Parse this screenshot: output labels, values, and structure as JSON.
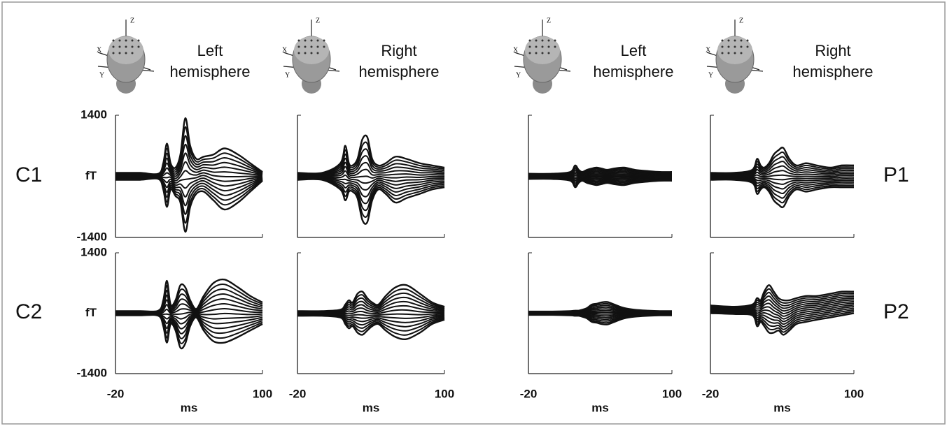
{
  "figure": {
    "columns": [
      {
        "title": "Left hemisphere",
        "head_axes": [
          "Z",
          "X",
          "Y"
        ]
      },
      {
        "title": "Right hemisphere",
        "head_axes": [
          "Z",
          "X",
          "Y"
        ]
      },
      {
        "title": "Left hemisphere",
        "head_axes": [
          "Z",
          "X",
          "Y"
        ]
      },
      {
        "title": "Right hemisphere",
        "head_axes": [
          "Z",
          "X",
          "Y"
        ]
      }
    ],
    "row_labels": [
      "C1",
      "C2",
      "P1",
      "P2"
    ]
  },
  "chart_data": [
    {
      "type": "line",
      "ylabel": "fT",
      "xlim": [
        -20,
        100
      ],
      "xticks": [
        -20,
        100
      ],
      "ylim": [
        -1400,
        1400
      ],
      "yticks": [
        -1400,
        1400
      ],
      "x": [
        -20,
        0,
        15,
        19,
        22,
        25,
        29,
        33,
        37,
        41,
        46,
        52,
        60,
        69,
        80,
        90,
        100
      ],
      "upper": [
        80,
        80,
        60,
        300,
        750,
        300,
        200,
        500,
        1330,
        700,
        400,
        450,
        500,
        640,
        500,
        300,
        100
      ],
      "lower": [
        -80,
        -80,
        -60,
        -300,
        -700,
        -300,
        -450,
        -600,
        -1270,
        -700,
        -400,
        -350,
        -550,
        -760,
        -600,
        -350,
        -100
      ]
    },
    {
      "type": "line",
      "xlim": [
        -20,
        100
      ],
      "xticks": [
        -20,
        100
      ],
      "ylim": [
        -1400,
        1400
      ],
      "yticks": [
        -1400,
        1400
      ],
      "x": [
        -20,
        0,
        15,
        19,
        22,
        25,
        29,
        33,
        37,
        41,
        46,
        52,
        60,
        69,
        80,
        90,
        100
      ],
      "upper": [
        80,
        80,
        300,
        700,
        300,
        250,
        400,
        850,
        900,
        400,
        250,
        300,
        450,
        400,
        300,
        250,
        200
      ],
      "lower": [
        -80,
        -80,
        -300,
        -550,
        -350,
        -350,
        -500,
        -1000,
        -1050,
        -550,
        -300,
        -400,
        -600,
        -500,
        -400,
        -300,
        -250
      ]
    },
    {
      "type": "line",
      "xlim": [
        -20,
        100
      ],
      "xticks": [
        -20,
        100
      ],
      "ylim": [
        -1400,
        1400
      ],
      "yticks": [
        -1400,
        1400
      ],
      "x": [
        -20,
        0,
        15,
        19,
        22,
        25,
        29,
        33,
        37,
        41,
        46,
        52,
        60,
        69,
        80,
        90,
        100
      ],
      "upper": [
        60,
        60,
        100,
        250,
        150,
        100,
        150,
        180,
        200,
        180,
        150,
        180,
        200,
        150,
        120,
        100,
        100
      ],
      "lower": [
        -60,
        -60,
        -100,
        -250,
        -150,
        -100,
        -150,
        -180,
        -200,
        -180,
        -150,
        -180,
        -200,
        -150,
        -120,
        -100,
        -100
      ]
    },
    {
      "type": "line",
      "xlim": [
        -20,
        100
      ],
      "xticks": [
        -20,
        100
      ],
      "ylim": [
        -1400,
        1400
      ],
      "yticks": [
        -1400,
        1400
      ],
      "x": [
        -20,
        0,
        15,
        19,
        22,
        25,
        29,
        33,
        37,
        41,
        46,
        52,
        60,
        69,
        80,
        90,
        100
      ],
      "upper": [
        80,
        80,
        150,
        400,
        250,
        200,
        300,
        500,
        600,
        650,
        400,
        250,
        300,
        250,
        200,
        250,
        250
      ],
      "lower": [
        -80,
        -80,
        -150,
        -400,
        -300,
        -250,
        -350,
        -550,
        -650,
        -700,
        -450,
        -300,
        -350,
        -300,
        -250,
        -250,
        -250
      ]
    },
    {
      "type": "line",
      "ylabel": "fT",
      "xlabel": "ms",
      "xlim": [
        -20,
        100
      ],
      "xticks": [
        -20,
        100
      ],
      "ylim": [
        -1400,
        1400
      ],
      "yticks": [
        -1400,
        1400
      ],
      "x": [
        -20,
        0,
        15,
        19,
        22,
        25,
        29,
        33,
        37,
        41,
        46,
        52,
        60,
        69,
        80,
        90,
        100
      ],
      "upper": [
        50,
        50,
        60,
        300,
        750,
        200,
        300,
        650,
        600,
        300,
        100,
        400,
        700,
        780,
        600,
        400,
        250
      ],
      "lower": [
        -50,
        -50,
        -60,
        -300,
        -680,
        -250,
        -400,
        -800,
        -700,
        -300,
        -100,
        -400,
        -650,
        -680,
        -550,
        -400,
        -250
      ]
    },
    {
      "type": "line",
      "xlabel": "ms",
      "xlim": [
        -20,
        100
      ],
      "xticks": [
        -20,
        100
      ],
      "ylim": [
        -1400,
        1400
      ],
      "yticks": [
        -1400,
        1400
      ],
      "x": [
        -20,
        0,
        15,
        19,
        22,
        25,
        29,
        33,
        37,
        41,
        46,
        52,
        60,
        69,
        80,
        90,
        100
      ],
      "upper": [
        50,
        50,
        80,
        200,
        300,
        250,
        450,
        500,
        350,
        250,
        200,
        400,
        600,
        650,
        450,
        250,
        150
      ],
      "lower": [
        -60,
        -60,
        -100,
        -250,
        -350,
        -300,
        -450,
        -500,
        -400,
        -300,
        -250,
        -400,
        -550,
        -600,
        -450,
        -250,
        -150
      ]
    },
    {
      "type": "line",
      "xlabel": "ms",
      "xlim": [
        -20,
        100
      ],
      "xticks": [
        -20,
        100
      ],
      "ylim": [
        -1400,
        1400
      ],
      "yticks": [
        -1400,
        1400
      ],
      "x": [
        -20,
        0,
        15,
        19,
        22,
        25,
        29,
        33,
        37,
        41,
        46,
        52,
        60,
        69,
        80,
        90,
        100
      ],
      "upper": [
        40,
        40,
        50,
        60,
        60,
        80,
        120,
        200,
        220,
        250,
        260,
        200,
        120,
        80,
        60,
        50,
        50
      ],
      "lower": [
        -40,
        -40,
        -50,
        -60,
        -60,
        -80,
        -120,
        -200,
        -220,
        -250,
        -260,
        -200,
        -120,
        -80,
        -60,
        -50,
        -50
      ]
    },
    {
      "type": "line",
      "xlabel": "ms",
      "xlim": [
        -20,
        100
      ],
      "xticks": [
        -20,
        100
      ],
      "ylim": [
        -1400,
        1400
      ],
      "yticks": [
        -1400,
        1400
      ],
      "x": [
        -20,
        0,
        15,
        19,
        22,
        25,
        29,
        33,
        37,
        41,
        46,
        52,
        60,
        69,
        80,
        90,
        100
      ],
      "upper": [
        180,
        150,
        200,
        350,
        300,
        500,
        650,
        500,
        350,
        300,
        300,
        350,
        400,
        400,
        450,
        500,
        500
      ],
      "lower": [
        0,
        -20,
        -50,
        -300,
        -200,
        -300,
        -450,
        -450,
        -400,
        -500,
        -400,
        -250,
        -200,
        -150,
        -100,
        -50,
        0
      ]
    }
  ]
}
